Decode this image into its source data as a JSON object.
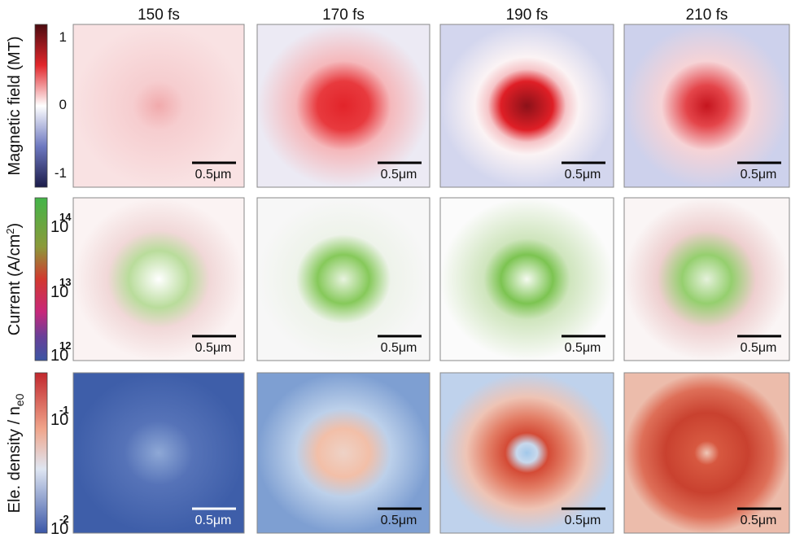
{
  "columns": [
    "150 fs",
    "170 fs",
    "190 fs",
    "210 fs"
  ],
  "scale_bar": "0.5μm",
  "rows": [
    {
      "label": "Magnetic field (MT)",
      "colorbar_ticks": [
        "1",
        "0",
        "-1"
      ]
    },
    {
      "label": {
        "text": "Current (A/cm",
        "sup": "2",
        "end": ")"
      },
      "colorbar_ticks": [
        {
          "base": "10",
          "exponent": "14"
        },
        {
          "base": "10",
          "exponent": "13"
        },
        {
          "base": "10",
          "exponent": "12"
        }
      ]
    },
    {
      "label": {
        "text": "Ele. density / n",
        "sub": "e0"
      },
      "colorbar_ticks": [
        {
          "base": "10",
          "exponent": "-1"
        },
        {
          "base": "10",
          "exponent": "-2"
        }
      ]
    }
  ]
}
